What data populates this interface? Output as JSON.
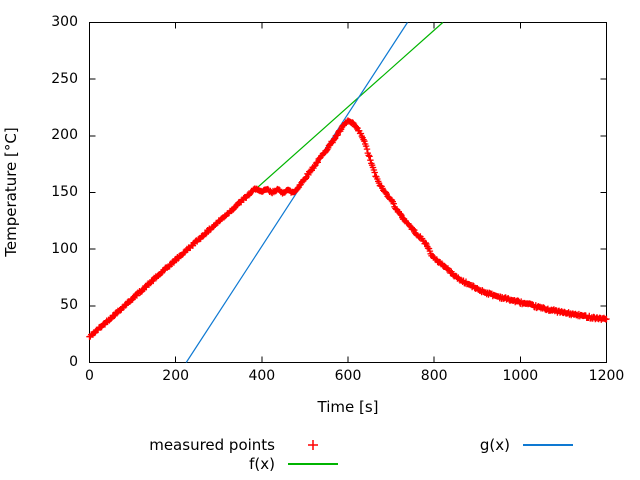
{
  "axes": {
    "xlabel": "Time [s]",
    "ylabel": "Temperature [°C]",
    "xlim": [
      0,
      1200
    ],
    "ylim": [
      0,
      300
    ],
    "xticks": [
      0,
      200,
      400,
      600,
      800,
      1000,
      1200
    ],
    "yticks": [
      0,
      50,
      100,
      150,
      200,
      250,
      300
    ]
  },
  "legend": {
    "measured_label": "measured points",
    "f_label": "f(x)",
    "g_label": "g(x)"
  },
  "colors": {
    "measured": "#ff0000",
    "f_line": "#00b400",
    "g_line": "#0e79d2",
    "axis": "#000000",
    "background": "#ffffff"
  },
  "chart_data": {
    "type": "scatter",
    "title": "",
    "xlabel": "Time [s]",
    "ylabel": "Temperature [°C]",
    "xlim": [
      0,
      1200
    ],
    "ylim": [
      0,
      300
    ],
    "xticks": [
      0,
      200,
      400,
      600,
      800,
      1000,
      1200
    ],
    "yticks": [
      0,
      50,
      100,
      150,
      200,
      250,
      300
    ],
    "grid": false,
    "legend_position": "below-plot, two columns",
    "series": [
      {
        "name": "measured points",
        "type": "points",
        "marker": "plus",
        "color": "#ff0000",
        "sample_interval_s": 2,
        "noise_c": 1.1,
        "description": "dense + markers: linear heat-up ~0.34 C/s to 154 C at t=388, wavy plateau ~151 C until t=480, second ramp along g(x) to peak 213 C at t=599, cooling with fast drop 640-668 s, kink near 790 s, exponential-like tail to 38 C at 1200 s",
        "anchors": [
          [
            0,
            22.5
          ],
          [
            60,
            42.9
          ],
          [
            120,
            63.3
          ],
          [
            180,
            83.7
          ],
          [
            240,
            104.1
          ],
          [
            300,
            124.5
          ],
          [
            360,
            144.9
          ],
          [
            388,
            154.2
          ],
          [
            393,
            151.6
          ],
          [
            399,
            149.9
          ],
          [
            405,
            151.3
          ],
          [
            411,
            153.2
          ],
          [
            417,
            151.2
          ],
          [
            423,
            149.6
          ],
          [
            429,
            151.4
          ],
          [
            435,
            153.0
          ],
          [
            441,
            151.2
          ],
          [
            447,
            149.8
          ],
          [
            453,
            151.0
          ],
          [
            459,
            152.4
          ],
          [
            465,
            151.0
          ],
          [
            471,
            150.1
          ],
          [
            477,
            150.8
          ],
          [
            486,
            155.5
          ],
          [
            498,
            161.5
          ],
          [
            510,
            167.5
          ],
          [
            522,
            173.5
          ],
          [
            534,
            179.5
          ],
          [
            546,
            185.8
          ],
          [
            558,
            192.0
          ],
          [
            570,
            198.2
          ],
          [
            580,
            203.5
          ],
          [
            588,
            208.0
          ],
          [
            594,
            211.0
          ],
          [
            599,
            213.0
          ],
          [
            605,
            212.2
          ],
          [
            613,
            210.0
          ],
          [
            621,
            206.5
          ],
          [
            628,
            202.5
          ],
          [
            634,
            198.7
          ],
          [
            640,
            192.5
          ],
          [
            646,
            185.5
          ],
          [
            652,
            178.5
          ],
          [
            658,
            171.5
          ],
          [
            664,
            165.0
          ],
          [
            668,
            161.0
          ],
          [
            674,
            157.0
          ],
          [
            682,
            152.0
          ],
          [
            690,
            148.5
          ],
          [
            700,
            144.0
          ],
          [
            712,
            135.5
          ],
          [
            724,
            129.0
          ],
          [
            737,
            123.5
          ],
          [
            750,
            117.5
          ],
          [
            762,
            112.5
          ],
          [
            772,
            108.5
          ],
          [
            780,
            105.0
          ],
          [
            786,
            101.5
          ],
          [
            791,
            97.5
          ],
          [
            796,
            93.5
          ],
          [
            804,
            90.5
          ],
          [
            814,
            88.0
          ],
          [
            828,
            83.5
          ],
          [
            843,
            78.0
          ],
          [
            858,
            73.5
          ],
          [
            875,
            70.0
          ],
          [
            890,
            67.0
          ],
          [
            905,
            64.0
          ],
          [
            925,
            61.0
          ],
          [
            950,
            58.0
          ],
          [
            975,
            55.5
          ],
          [
            1000,
            53.0
          ],
          [
            1025,
            50.5
          ],
          [
            1050,
            48.0
          ],
          [
            1075,
            46.0
          ],
          [
            1100,
            44.0
          ],
          [
            1125,
            42.3
          ],
          [
            1150,
            40.8
          ],
          [
            1175,
            39.3
          ],
          [
            1200,
            38.2
          ]
        ]
      },
      {
        "name": "f(x)",
        "type": "line",
        "color": "#00b400",
        "slope_c_per_s": 0.3384,
        "points": [
          [
            0,
            22.5
          ],
          [
            820,
            300
          ]
        ]
      },
      {
        "name": "g(x)",
        "type": "line",
        "color": "#0e79d2",
        "slope_c_per_s": 0.5842,
        "points": [
          [
            224.5,
            0
          ],
          [
            738,
            300
          ]
        ]
      }
    ]
  }
}
